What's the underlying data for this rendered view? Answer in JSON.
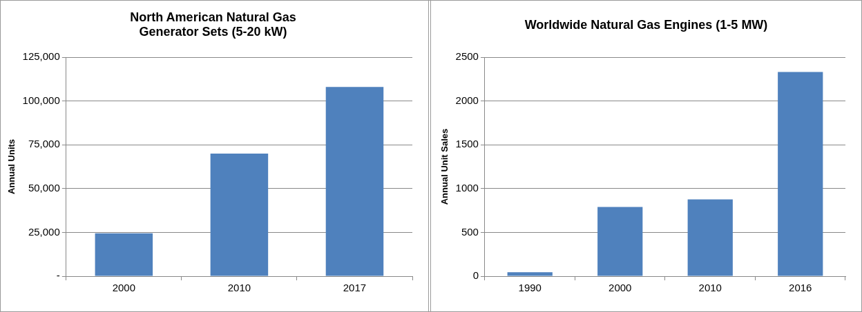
{
  "chart_data": [
    {
      "type": "bar",
      "title": "North American Natural Gas Generator Sets (5-20 kW)",
      "ylabel": "Annual Units",
      "categories": [
        "2000",
        "2010",
        "2017"
      ],
      "values": [
        24500,
        70000,
        108000
      ],
      "color": "#4f81bd",
      "ylim": [
        0,
        125000
      ],
      "yticks": [
        {
          "value": 0,
          "label": "-"
        },
        {
          "value": 25000,
          "label": "25,000"
        },
        {
          "value": 50000,
          "label": "50,000"
        },
        {
          "value": 75000,
          "label": "75,000"
        },
        {
          "value": 100000,
          "label": "100,000"
        },
        {
          "value": 125000,
          "label": "125,000"
        }
      ],
      "grid": "y"
    },
    {
      "type": "bar",
      "title": "Worldwide Natural Gas Engines (1-5 MW)",
      "ylabel": "Annual Unit Sales",
      "categories": [
        "1990",
        "2000",
        "2010",
        "2016"
      ],
      "values": [
        45,
        790,
        877,
        2330
      ],
      "color": "#4f81bd",
      "ylim": [
        0,
        2500
      ],
      "yticks": [
        0,
        500,
        1000,
        1500,
        2000,
        2500
      ],
      "grid": "y"
    }
  ]
}
